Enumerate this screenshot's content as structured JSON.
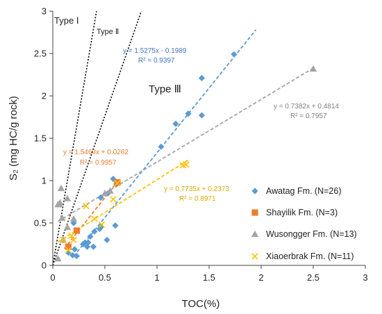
{
  "chart_data": {
    "type": "scatter",
    "xlabel": "TOC(%)",
    "ylabel": "S₂ (mg HC/g rock)",
    "xlim": [
      0,
      3
    ],
    "ylim": [
      0,
      3
    ],
    "xticks": [
      "0",
      "0.5",
      "1",
      "1.5",
      "2",
      "2.5",
      "3"
    ],
    "yticks": [
      "0",
      "0.5",
      "1",
      "1.5",
      "2",
      "2.5",
      "3"
    ],
    "grid": false,
    "legend_position": "right",
    "type_labels": {
      "type1": "Type Ⅰ",
      "type2": "Type Ⅱ",
      "type3": "Type Ⅲ"
    },
    "type_lines": [
      {
        "name": "Type Ⅰ",
        "x": [
          0,
          0.42
        ],
        "y": [
          0,
          3
        ]
      },
      {
        "name": "Type Ⅱ",
        "x": [
          0,
          0.85
        ],
        "y": [
          0,
          3
        ]
      }
    ],
    "series": [
      {
        "name": "Awatag Fm. (N=26)",
        "marker": "diamond",
        "color": "#5b9bd5",
        "points": [
          [
            0.15,
            0.15
          ],
          [
            0.19,
            0.12
          ],
          [
            0.21,
            0.19
          ],
          [
            0.23,
            0.11
          ],
          [
            0.2,
            0.5
          ],
          [
            0.29,
            0.25
          ],
          [
            0.31,
            0.27
          ],
          [
            0.33,
            0.22
          ],
          [
            0.34,
            0.27
          ],
          [
            0.36,
            0.34
          ],
          [
            0.39,
            0.22
          ],
          [
            0.4,
            0.4
          ],
          [
            0.45,
            0.43
          ],
          [
            0.46,
            0.45
          ],
          [
            0.52,
            0.3
          ],
          [
            0.58,
            1.02
          ],
          [
            0.6,
            0.47
          ],
          [
            0.46,
            0.8
          ],
          [
            0.53,
            0.85
          ],
          [
            1.04,
            1.4
          ],
          [
            1.18,
            1.67
          ],
          [
            1.3,
            1.79
          ],
          [
            1.43,
            1.77
          ],
          [
            1.43,
            2.21
          ],
          [
            1.74,
            2.49
          ],
          [
            0.61,
            0.96
          ]
        ],
        "trendline": {
          "slope": 1.5275,
          "intercept": -0.1989,
          "x_range": [
            0.2,
            1.95
          ]
        },
        "equation": "y = 1.5275x - 0.1989",
        "r2": "R² = 0.9397"
      },
      {
        "name": "Shayilik Fm. (N=3)",
        "marker": "square",
        "color": "#ed7d31",
        "points": [
          [
            0.15,
            0.22
          ],
          [
            0.23,
            0.41
          ],
          [
            0.62,
            0.98
          ]
        ],
        "trendline": {
          "slope": 1.5469,
          "intercept": 0.0262,
          "x_range": [
            0.11,
            0.64
          ]
        },
        "equation": "y = 1.5469x + 0.0262",
        "r2": "R² = 0.9957"
      },
      {
        "name": "Wusongger Fm. (N=13)",
        "marker": "triangle",
        "color": "#a5a5a5",
        "points": [
          [
            0.05,
            0.08
          ],
          [
            0.05,
            0.72
          ],
          [
            0.06,
            0.72
          ],
          [
            0.07,
            0.74
          ],
          [
            0.08,
            0.91
          ],
          [
            0.09,
            0.56
          ],
          [
            0.14,
            0.79
          ],
          [
            0.1,
            0.3
          ],
          [
            0.14,
            0.45
          ],
          [
            0.2,
            0.55
          ],
          [
            0.5,
            0.85
          ],
          [
            0.55,
            0.88
          ],
          [
            2.5,
            2.32
          ]
        ],
        "trendline": {
          "slope": 0.7382,
          "intercept": 0.4814,
          "x_range": [
            0.05,
            2.5
          ]
        },
        "equation": "y = 0.7382x + 0.4814",
        "r2": "R² = 0.7957"
      },
      {
        "name": "Xiaoerbrak Fm. (N=11)",
        "marker": "x",
        "color": "#ffc000",
        "points": [
          [
            0.1,
            0.3
          ],
          [
            0.15,
            0.18
          ],
          [
            0.18,
            0.35
          ],
          [
            0.2,
            0.3
          ],
          [
            0.32,
            0.7
          ],
          [
            0.4,
            0.55
          ],
          [
            0.47,
            0.48
          ],
          [
            0.58,
            0.78
          ],
          [
            0.62,
            0.97
          ],
          [
            1.25,
            1.18
          ],
          [
            1.28,
            1.19
          ]
        ],
        "trendline": {
          "slope": 0.7735,
          "intercept": 0.2373,
          "x_range": [
            0.05,
            1.3
          ]
        },
        "equation": "y = 0.7735x + 0.2373",
        "r2": "R² = 0.8971"
      }
    ]
  }
}
